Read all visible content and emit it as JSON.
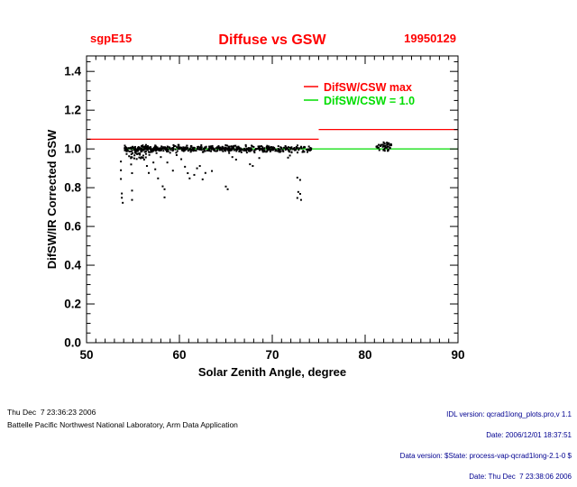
{
  "header": {
    "site": "sgpE15",
    "title": "Diffuse vs GSW",
    "date": "19950129"
  },
  "footer": {
    "left_line1": "Thu Dec  7 23:36:23 2006",
    "left_line2": "Battelle Pacific Northwest National Laboratory, Arm Data Application",
    "right_lines": [
      "IDL version: qcrad1long_plots.pro,v 1.1",
      "Date: 2006/12/01 18:37:51",
      "Data version: $State: process-vap-qcrad1long-2.1-0 $",
      "Date: Thu Dec  7 23:38:06 2006"
    ]
  },
  "colors": {
    "red": "#ff0000",
    "green": "#00dd00",
    "black": "#000000",
    "navy": "#000090"
  },
  "chart_data": {
    "type": "scatter",
    "title": "Diffuse vs GSW",
    "site": "sgpE15",
    "date_label": "19950129",
    "xlabel": "Solar Zenith Angle, degree",
    "ylabel": "DifSW/IR Corrected GSW",
    "xlim": [
      50,
      90
    ],
    "ylim": [
      0,
      1.48
    ],
    "xticks": [
      50,
      60,
      70,
      80,
      90
    ],
    "yticks": [
      0.0,
      0.2,
      0.4,
      0.6,
      0.8,
      1.0,
      1.2,
      1.4
    ],
    "x_minor_step": 1,
    "y_minor_step": 0.05,
    "grid": false,
    "legend_position": "top-right-inside",
    "legend": [
      {
        "label": "DifSW/CSW max",
        "color": "#ff0000"
      },
      {
        "label": "DifSW/CSW = 1.0",
        "color": "#00dd00"
      }
    ],
    "ref_lines": [
      {
        "name": "difsw-csw-max",
        "color": "#ff0000",
        "z": "above",
        "segments": [
          [
            50,
            75,
            1.05
          ],
          [
            75,
            90,
            1.1
          ]
        ]
      },
      {
        "name": "difsw-csw-equals-1",
        "color": "#00dd00",
        "z": "below",
        "segments": [
          [
            54.1,
            90,
            1.0
          ]
        ]
      }
    ],
    "scatter": {
      "color": "#000000",
      "marker_px": 2,
      "band": {
        "x_min": 54.1,
        "x_max": 74.2,
        "y_center": 1.0,
        "y_spread": 0.05,
        "count": 520,
        "seed": 7
      },
      "left_tail": {
        "x_min": 54.1,
        "x_max": 56.8,
        "y_min": 0.95,
        "y_max": 0.995,
        "count": 30,
        "seed": 11
      },
      "cluster": {
        "x_min": 81.2,
        "x_max": 82.9,
        "y_min": 0.99,
        "y_max": 1.035,
        "count": 42,
        "seed": 3
      },
      "outliers": [
        [
          53.7,
          0.935
        ],
        [
          53.7,
          0.89
        ],
        [
          53.7,
          0.845
        ],
        [
          53.8,
          0.77
        ],
        [
          53.8,
          0.748
        ],
        [
          53.9,
          0.722
        ],
        [
          54.8,
          0.958
        ],
        [
          54.8,
          0.92
        ],
        [
          54.9,
          0.875
        ],
        [
          54.9,
          0.785
        ],
        [
          54.9,
          0.737
        ],
        [
          55.4,
          0.948
        ],
        [
          55.9,
          0.956
        ],
        [
          56.2,
          0.945
        ],
        [
          56.5,
          0.912
        ],
        [
          56.7,
          0.876
        ],
        [
          57.2,
          0.93
        ],
        [
          57.4,
          0.895
        ],
        [
          57.7,
          0.848
        ],
        [
          58.0,
          0.958
        ],
        [
          58.2,
          0.807
        ],
        [
          58.4,
          0.792
        ],
        [
          58.4,
          0.75
        ],
        [
          58.7,
          0.93
        ],
        [
          59.3,
          0.888
        ],
        [
          59.7,
          0.968
        ],
        [
          60.2,
          0.947
        ],
        [
          60.6,
          0.908
        ],
        [
          60.9,
          0.875
        ],
        [
          61.1,
          0.848
        ],
        [
          61.6,
          0.866
        ],
        [
          61.9,
          0.9
        ],
        [
          62.2,
          0.912
        ],
        [
          62.5,
          0.843
        ],
        [
          62.8,
          0.876
        ],
        [
          63.5,
          0.886
        ],
        [
          65.0,
          0.806
        ],
        [
          65.2,
          0.792
        ],
        [
          65.7,
          0.958
        ],
        [
          66.1,
          0.945
        ],
        [
          67.6,
          0.921
        ],
        [
          67.9,
          0.912
        ],
        [
          68.6,
          0.953
        ],
        [
          71.7,
          0.955
        ],
        [
          71.9,
          0.966
        ],
        [
          72.7,
          0.852
        ],
        [
          73.0,
          0.84
        ],
        [
          72.8,
          0.778
        ],
        [
          73.0,
          0.768
        ],
        [
          72.7,
          0.747
        ],
        [
          73.1,
          0.737
        ]
      ]
    }
  }
}
